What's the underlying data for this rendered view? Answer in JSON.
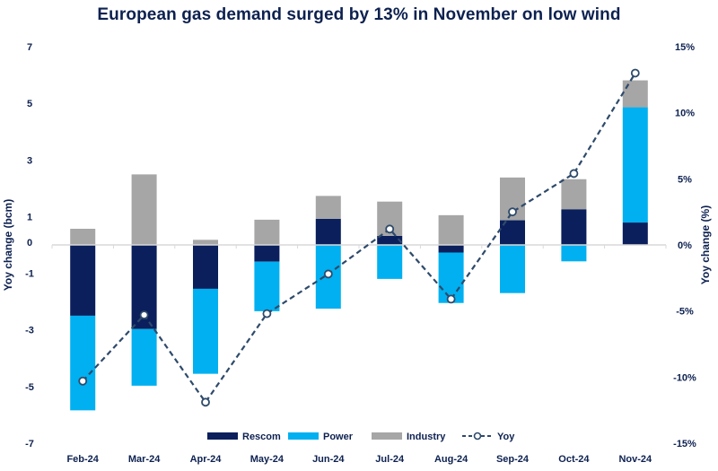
{
  "chart_data": {
    "type": "bar",
    "subtype": "stacked-bar-with-line",
    "title": "European gas demand surged by 13% in November on low wind",
    "categories": [
      "Feb-24",
      "Mar-24",
      "Apr-24",
      "May-24",
      "Jun-24",
      "Jul-24",
      "Aug-24",
      "Sep-24",
      "Oct-24",
      "Nov-24"
    ],
    "series": [
      {
        "name": "Rescom",
        "type": "bar",
        "axis": "left",
        "color": "#0a1f5c",
        "values": [
          -2.5,
          -2.97,
          -1.55,
          -0.59,
          0.92,
          0.32,
          -0.27,
          0.87,
          1.26,
          0.79
        ]
      },
      {
        "name": "Power",
        "type": "bar",
        "axis": "left",
        "color": "#00b0f0",
        "values": [
          -3.34,
          -2.0,
          -3.0,
          -1.75,
          -2.25,
          -1.2,
          -1.78,
          -1.7,
          -0.58,
          4.07
        ]
      },
      {
        "name": "Industry",
        "type": "bar",
        "axis": "left",
        "color": "#a6a6a6",
        "values": [
          0.57,
          2.49,
          0.18,
          0.89,
          0.81,
          1.21,
          1.05,
          1.51,
          1.06,
          0.95
        ]
      },
      {
        "name": "Yoy",
        "type": "line",
        "axis": "right",
        "color": "#2e4a6b",
        "style": "dashed-with-hollow-markers",
        "values": [
          -10.3,
          -5.3,
          -11.9,
          -5.2,
          -2.2,
          1.2,
          -4.1,
          2.5,
          5.4,
          13.0
        ]
      }
    ],
    "ylabel": "Yoy change (bcm)",
    "ylabel_right": "Yoy change (%)",
    "xlabel": "",
    "ylim": [
      -7,
      7
    ],
    "ylim_right": [
      -15,
      15
    ],
    "yticks": [
      7,
      5,
      3,
      1,
      0,
      -1,
      -3,
      -5,
      -7
    ],
    "yticks_right": [
      "15%",
      "10%",
      "5%",
      "0%",
      "-5%",
      "-10%",
      "-15%"
    ],
    "yticks_right_values": [
      15,
      10,
      5,
      0,
      -5,
      -10,
      -15
    ],
    "grid": false,
    "legend": {
      "position": "bottom",
      "entries": [
        "Rescom",
        "Power",
        "Industry",
        "Yoy"
      ]
    }
  }
}
